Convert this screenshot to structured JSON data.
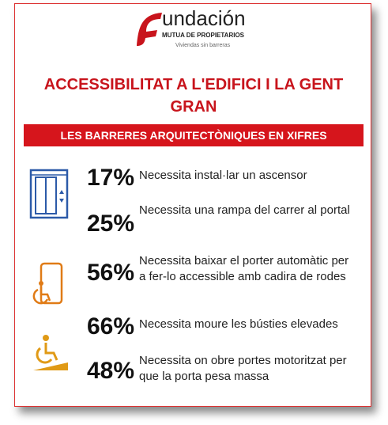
{
  "logo": {
    "name": "undación",
    "tagline": "MUTUA DE PROPIETARIOS",
    "motto": "Viviendas sin barreras"
  },
  "title": "ACCESSIBILITAT A L'EDIFICI I LA GENT GRAN",
  "banner": "LES BARRERES ARQUITECTÒNIQUES EN XIFRES",
  "items": [
    {
      "value": "17%",
      "text": "Necessita instal·lar un ascensor"
    },
    {
      "value": "25%",
      "text": "Necessita una rampa del carrer al portal"
    },
    {
      "value": "56%",
      "text": "Necessita baixar el porter automàtic per a fer-lo accessible amb cadira de rodes"
    },
    {
      "value": "66%",
      "text": "Necessita moure les bústies elevades"
    },
    {
      "value": "48%",
      "text": "Necessita on obre portes motoritzat per que la porta pesa massa"
    }
  ]
}
